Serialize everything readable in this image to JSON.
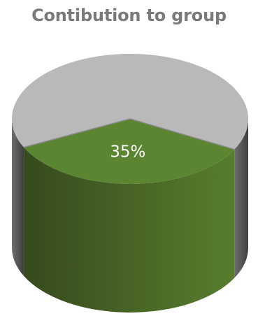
{
  "chart_data": {
    "type": "pie",
    "title": "Contibution to group",
    "slices": [
      {
        "name": "",
        "value": 35,
        "label": "35%",
        "color": "#5b8530",
        "highlight": true
      },
      {
        "name": "",
        "value": 65,
        "label": "",
        "color": "#b9b9b9",
        "highlight": false
      }
    ],
    "style": "3d-cylinder"
  },
  "colors": {
    "title": "#7a7a7a",
    "label": "#ffffff",
    "divider": "#8a8a8a",
    "highlight_side_dark": "#364a1d",
    "highlight_side_light": "#587d2e",
    "other_side_dark": "#3e3e3e",
    "other_side_light": "#6e6e6e"
  }
}
